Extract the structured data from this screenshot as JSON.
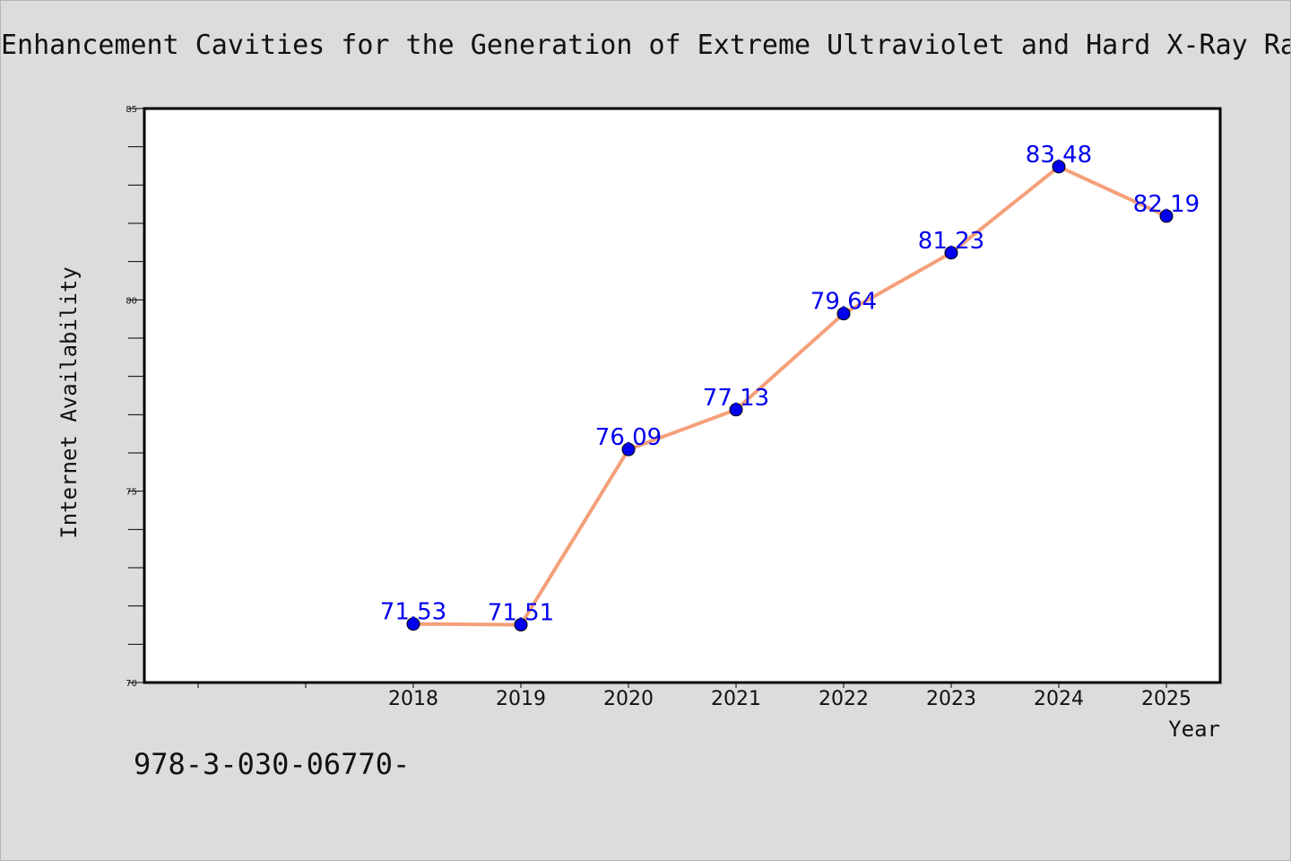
{
  "chart_data": {
    "type": "line",
    "title": "Enhancement Cavities for the Generation of Extreme Ultraviolet and Hard X-Ray Ra",
    "xlabel": "Year",
    "ylabel": "Internet Availability",
    "x": [
      "2018",
      "2019",
      "2020",
      "2021",
      "2022",
      "2023",
      "2024",
      "2025"
    ],
    "x_ticks_unlabeled": 2,
    "values": [
      71.53,
      71.51,
      76.09,
      77.13,
      79.64,
      81.23,
      83.48,
      82.19
    ],
    "data_labels": [
      "71.53",
      "71.51",
      "76.09",
      "77.13",
      "79.64",
      "81.23",
      "83.48",
      "82.19"
    ],
    "ylim": [
      70,
      85
    ],
    "yticks": [
      "70",
      "75",
      "80",
      "85"
    ],
    "grid": false,
    "line_color": "#f4a07a",
    "marker_color": "#0000ee",
    "label_color": "#0000ee"
  },
  "footer": {
    "text": "978-3-030-06770-"
  }
}
